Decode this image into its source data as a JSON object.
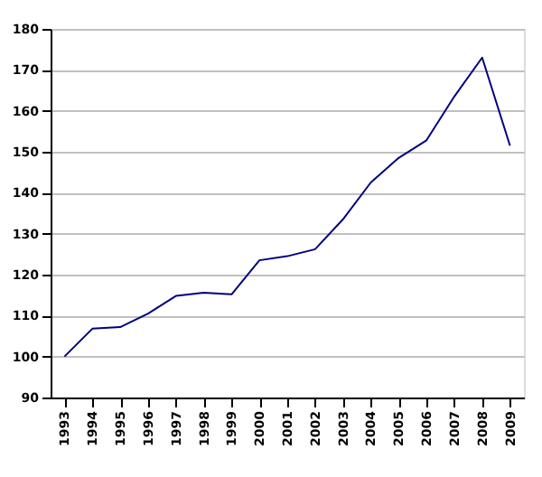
{
  "chart_data": {
    "type": "line",
    "categories": [
      "1993",
      "1994",
      "1995",
      "1996",
      "1997",
      "1998",
      "1999",
      "2000",
      "2001",
      "2002",
      "2003",
      "2004",
      "2005",
      "2006",
      "2007",
      "2008",
      "2009"
    ],
    "series": [
      {
        "color": "#000080",
        "values": [
          100,
          106.8,
          107.2,
          110.5,
          114.8,
          115.6,
          115.2,
          123.5,
          124.5,
          126.2,
          133.5,
          142.5,
          148.5,
          152.8,
          163.5,
          173,
          151.5
        ]
      }
    ],
    "ylim": [
      90,
      180
    ],
    "yticks": [
      90,
      100,
      110,
      120,
      130,
      140,
      150,
      160,
      170,
      180
    ],
    "grid": "y",
    "legend": false,
    "marker": "none",
    "line_style": "solid"
  }
}
